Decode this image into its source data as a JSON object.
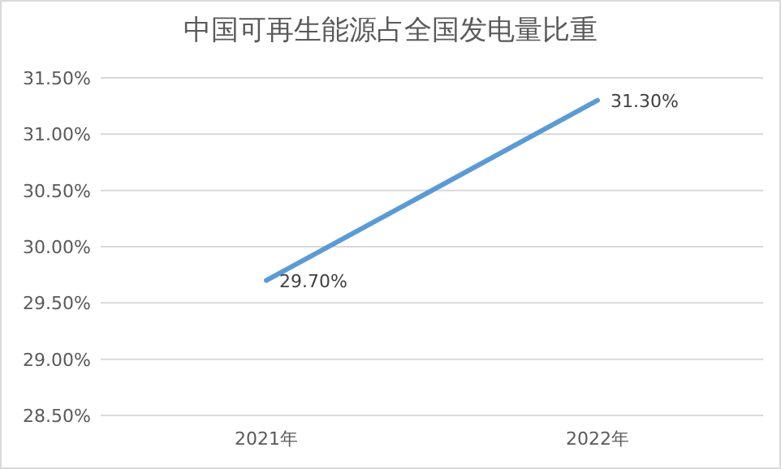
{
  "chart_data": {
    "type": "line",
    "title": "中国可再生能源占全国发电量比重",
    "categories": [
      "2021年",
      "2022年"
    ],
    "series": [
      {
        "color": "#5b9bd5",
        "values": [
          29.7,
          31.3
        ],
        "value_labels": [
          "29.70%",
          "31.30%"
        ]
      }
    ],
    "ylim": [
      28.5,
      31.5
    ],
    "yticks": [
      {
        "value": 28.5,
        "label": "28.50%"
      },
      {
        "value": 29,
        "label": "29.00%"
      },
      {
        "value": 29.5,
        "label": "29.50%"
      },
      {
        "value": 30,
        "label": "30.00%"
      },
      {
        "value": 30.5,
        "label": "30.50%"
      },
      {
        "value": 31,
        "label": "31.00%"
      },
      {
        "value": 31.5,
        "label": "31.50%"
      }
    ],
    "grid": "y",
    "marker": "none",
    "line_style": "solid"
  }
}
